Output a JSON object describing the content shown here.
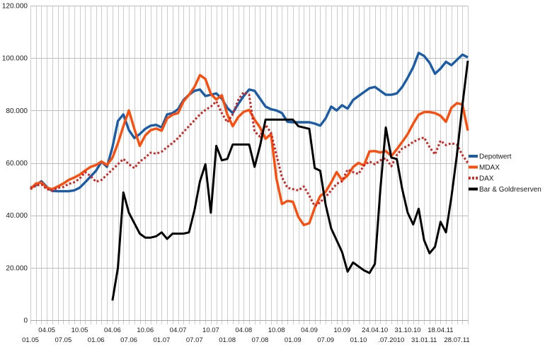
{
  "chart_data": {
    "type": "line",
    "title": "",
    "xlabel": "",
    "ylabel": "",
    "ylim": [
      0,
      120000
    ],
    "grid": true,
    "legend_position": "right",
    "n_points": 81,
    "y_ticks": [
      {
        "value": 0,
        "label": "0"
      },
      {
        "value": 20000,
        "label": "20.000"
      },
      {
        "value": 40000,
        "label": "40.000"
      },
      {
        "value": 60000,
        "label": "60.000"
      },
      {
        "value": 80000,
        "label": "80.000"
      },
      {
        "value": 100000,
        "label": "100.000"
      },
      {
        "value": 120000,
        "label": "120.000"
      }
    ],
    "x_labels": [
      {
        "index": 0,
        "label": "01.05",
        "row": 2
      },
      {
        "index": 3,
        "label": "04.05",
        "row": 1
      },
      {
        "index": 6,
        "label": "07.05",
        "row": 2
      },
      {
        "index": 9,
        "label": "10.05",
        "row": 1
      },
      {
        "index": 12,
        "label": "01.06",
        "row": 2
      },
      {
        "index": 15,
        "label": "04.06",
        "row": 1
      },
      {
        "index": 18,
        "label": "07.06",
        "row": 2
      },
      {
        "index": 21,
        "label": "10.06",
        "row": 1
      },
      {
        "index": 24,
        "label": "01.07",
        "row": 2
      },
      {
        "index": 27,
        "label": "04.07",
        "row": 1
      },
      {
        "index": 30,
        "label": "07.07",
        "row": 2
      },
      {
        "index": 33,
        "label": "10.07",
        "row": 1
      },
      {
        "index": 36,
        "label": "01.08",
        "row": 2
      },
      {
        "index": 39,
        "label": "04.08",
        "row": 1
      },
      {
        "index": 42,
        "label": "07.08",
        "row": 2
      },
      {
        "index": 45,
        "label": "10.08",
        "row": 1
      },
      {
        "index": 48,
        "label": "01.09",
        "row": 2
      },
      {
        "index": 51,
        "label": "04.09",
        "row": 1
      },
      {
        "index": 54,
        "label": "07.09",
        "row": 2
      },
      {
        "index": 57,
        "label": "10.09",
        "row": 1
      },
      {
        "index": 60,
        "label": "01.10",
        "row": 2
      },
      {
        "index": 63,
        "label": "24.04.10",
        "row": 1
      },
      {
        "index": 66,
        "label": ".07.2010",
        "row": 2
      },
      {
        "index": 69,
        "label": "31.10.10",
        "row": 1
      },
      {
        "index": 72,
        "label": "31.01.11",
        "row": 2
      },
      {
        "index": 75,
        "label": "18.04.11",
        "row": 1
      },
      {
        "index": 78,
        "label": "28.07.11",
        "row": 2
      }
    ],
    "series": [
      {
        "name": "Depotwert",
        "color": "#1A5CA8",
        "style": "solid",
        "width": 3.4,
        "values": [
          50500,
          51500,
          53000,
          50800,
          49300,
          49200,
          49200,
          49200,
          49500,
          50500,
          52600,
          54800,
          57000,
          60500,
          58500,
          66000,
          76000,
          78500,
          72500,
          69500,
          71000,
          73000,
          74200,
          74500,
          73500,
          78500,
          79000,
          80500,
          84000,
          86000,
          87500,
          88000,
          85500,
          86000,
          86500,
          84500,
          81000,
          79000,
          82500,
          85500,
          88000,
          87500,
          84500,
          81500,
          80500,
          80000,
          79000,
          75700,
          75500,
          75500,
          75500,
          75500,
          75000,
          74200,
          77000,
          81500,
          80000,
          82000,
          80700,
          84000,
          85500,
          87000,
          88500,
          89000,
          87500,
          86000,
          86000,
          86500,
          89000,
          92500,
          96500,
          102000,
          100800,
          98200,
          94000,
          96000,
          98600,
          97300,
          99300,
          101300,
          100300
        ]
      },
      {
        "name": "MDAX",
        "color": "#FB4D0C",
        "style": "solid",
        "width": 3.4,
        "values": [
          50000,
          52100,
          52500,
          50500,
          50000,
          51000,
          52100,
          53500,
          54400,
          55500,
          57100,
          58500,
          59200,
          60500,
          59200,
          62000,
          67500,
          74000,
          80000,
          73000,
          66500,
          70500,
          72500,
          73100,
          72300,
          77000,
          78400,
          79000,
          83500,
          86000,
          89000,
          93500,
          92000,
          86300,
          84200,
          85800,
          78500,
          74000,
          77500,
          79500,
          80200,
          76500,
          73500,
          69200,
          71000,
          54000,
          44300,
          45500,
          45200,
          39400,
          36300,
          37000,
          42900,
          47300,
          49000,
          52500,
          56500,
          53400,
          55200,
          58400,
          60000,
          59000,
          64400,
          64500,
          64000,
          64500,
          62600,
          65200,
          68000,
          71000,
          75000,
          78400,
          79400,
          79400,
          79000,
          78000,
          75700,
          81000,
          82800,
          82300,
          72300
        ]
      },
      {
        "name": "DAX",
        "color": "#D02420",
        "style": "dotted",
        "width": 3,
        "values": [
          50000,
          51300,
          51800,
          50000,
          49400,
          50500,
          50800,
          52000,
          52600,
          54000,
          56500,
          55000,
          52800,
          53500,
          55500,
          57500,
          59500,
          61500,
          59500,
          58000,
          60500,
          62000,
          63900,
          63500,
          64300,
          66000,
          67600,
          69500,
          71800,
          74000,
          76300,
          78500,
          80200,
          81500,
          83500,
          79000,
          75500,
          78500,
          84000,
          87000,
          86000,
          72000,
          70000,
          74500,
          71500,
          63000,
          54500,
          50500,
          50000,
          49500,
          51000,
          47500,
          43500,
          45000,
          47000,
          49500,
          52000,
          53000,
          57500,
          56500,
          55800,
          59000,
          60500,
          59500,
          61000,
          61800,
          58700,
          63000,
          65500,
          66500,
          68000,
          69000,
          69700,
          66000,
          63200,
          68500,
          66800,
          67500,
          67000,
          63000,
          60000
        ]
      },
      {
        "name": "Bar & Goldreserven",
        "color": "#000000",
        "style": "solid",
        "width": 3,
        "values": [
          null,
          null,
          null,
          null,
          null,
          null,
          null,
          null,
          null,
          null,
          null,
          null,
          null,
          null,
          null,
          7500,
          20000,
          48700,
          41000,
          37000,
          33000,
          31500,
          31500,
          32000,
          33500,
          31000,
          33000,
          33000,
          33000,
          33500,
          42000,
          53000,
          59500,
          41000,
          66500,
          61000,
          61500,
          67000,
          67000,
          67000,
          67000,
          58500,
          66500,
          76500,
          76500,
          76500,
          76500,
          76500,
          76500,
          74000,
          73500,
          73000,
          58000,
          57000,
          44000,
          35000,
          30500,
          26000,
          18500,
          22000,
          20500,
          19000,
          18000,
          21500,
          50000,
          73500,
          62000,
          61500,
          50000,
          41000,
          36500,
          42500,
          30500,
          25500,
          28000,
          37500,
          33500,
          47000,
          63000,
          82000,
          99000
        ]
      }
    ],
    "colors": {
      "grid_vertical": "#CCCCCC",
      "grid_horizontal": "#BDBDBD",
      "axis": "#A6A6A6",
      "background": "#FFFFFF"
    }
  }
}
